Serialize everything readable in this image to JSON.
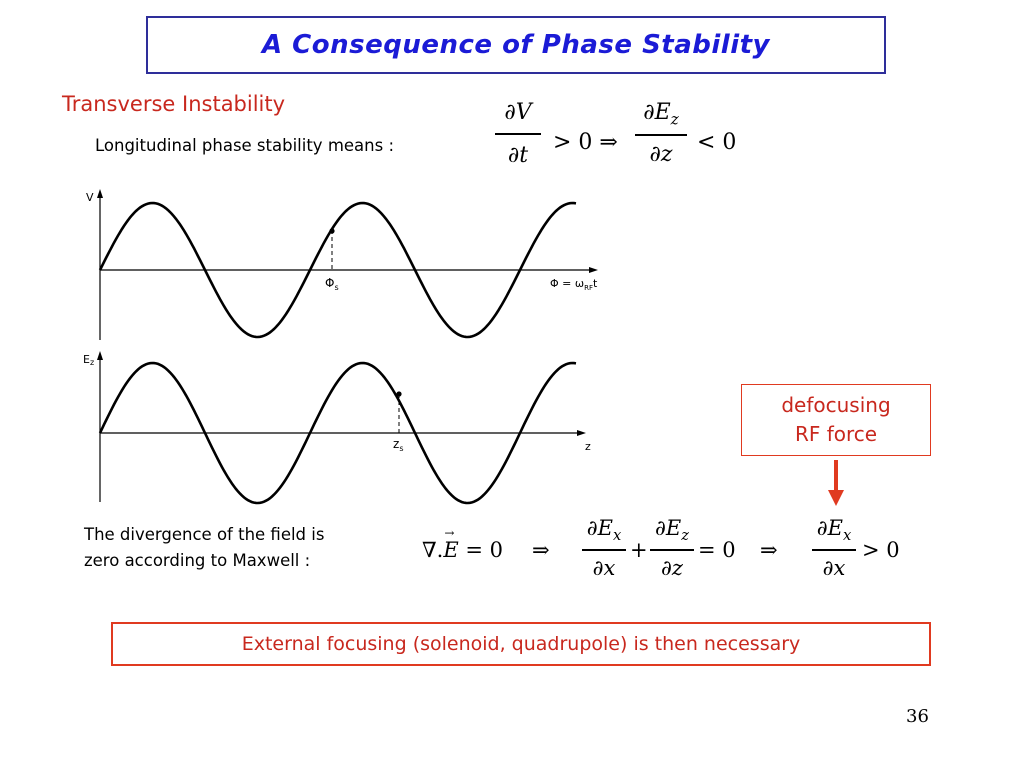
{
  "title": "A Consequence of Phase Stability",
  "subtitle": "Transverse Instability",
  "longitudinal_text": "Longitudinal phase stability means :",
  "eq1": {
    "lhs_num": "∂V",
    "lhs_den": "∂t",
    "gt": "> 0 ⇒",
    "rhs_num_main": "∂E",
    "rhs_num_sub": "z",
    "rhs_den": "∂z",
    "lt": "< 0"
  },
  "plot_top": {
    "y_label": "V",
    "phase_label": "Φ",
    "phase_sub": "s",
    "x_label_main": "Φ = ω",
    "x_label_sub": "RF",
    "x_label_end": "t"
  },
  "plot_bottom": {
    "y_label": "E",
    "y_label_sub": "z",
    "point_label": "z",
    "point_sub": "s",
    "x_label": "z"
  },
  "defocusing": {
    "line1": "defocusing",
    "line2": "RF force"
  },
  "divergence": {
    "line1": "The divergence of the field is",
    "line2": "zero according to Maxwell :"
  },
  "eq2": {
    "nabla": "∇.",
    "E": "E",
    "eq0": "= 0",
    "implies1": "⇒",
    "num1": "∂E",
    "sub1": "x",
    "den1": "∂x",
    "plus": "+",
    "num2": "∂E",
    "sub2": "z",
    "den2": "∂z",
    "eq0b": "= 0",
    "implies2": "⇒",
    "num3": "∂E",
    "sub3": "x",
    "den3": "∂x",
    "gt0": "> 0"
  },
  "external": "External focusing (solenoid, quadrupole) is then necessary",
  "page_number": "36",
  "colors": {
    "title": "#1b1bd6",
    "title_border": "#2e2e9a",
    "red": "#c8281e",
    "box_red": "#e03a20",
    "arrow": "#e03a20"
  }
}
